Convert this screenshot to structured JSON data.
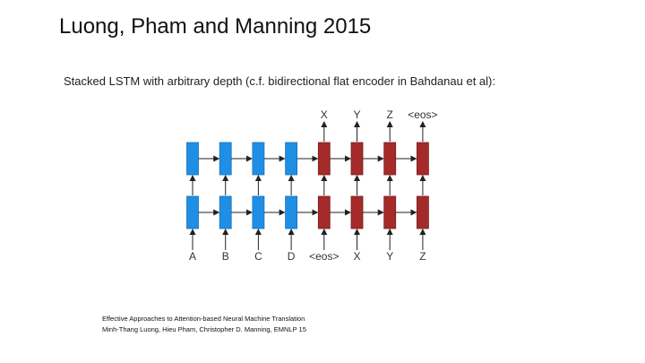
{
  "slide": {
    "title": "Luong, Pham and Manning 2015",
    "subtitle": "Stacked LSTM with arbitrary depth (c.f. bidirectional flat encoder in Bahdanau et al):"
  },
  "diagram": {
    "layers": 2,
    "encoder_steps": 4,
    "decoder_steps": 4,
    "encoder_color": "#1f8fe6",
    "decoder_color": "#a52a2a",
    "input_tokens": [
      "A",
      "B",
      "C",
      "D",
      "<eos>",
      "X",
      "Y",
      "Z"
    ],
    "output_tokens": [
      "X",
      "Y",
      "Z",
      "<eos>"
    ]
  },
  "citation": {
    "line1": "Effective Approaches to Attention-based Neural Machine Translation",
    "line2": "Minh-Thang Luong, Hieu Pham, Christopher D. Manning, EMNLP 15"
  }
}
